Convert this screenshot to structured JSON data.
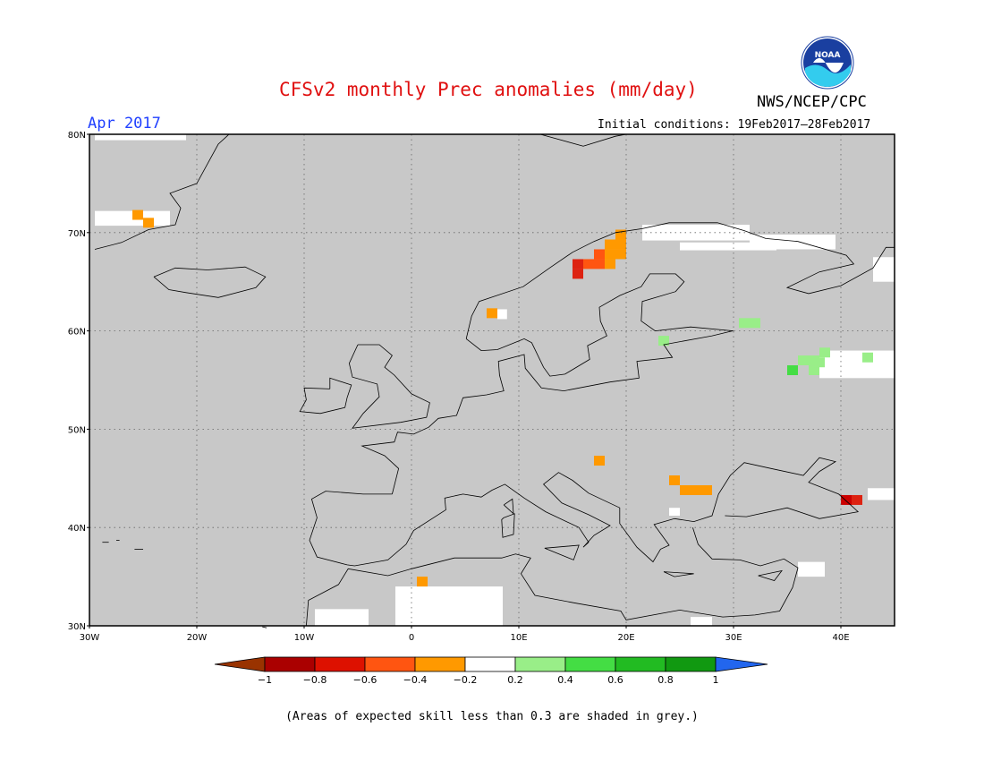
{
  "title": "CFSv2 monthly Prec anomalies (mm/day)",
  "month": "Apr 2017",
  "initial_conditions": "Initial conditions: 19Feb2017–28Feb2017",
  "agency": "NWS/NCEP/CPC",
  "logo_text": "NOAA",
  "footnote": "(Areas of expected skill less than 0.3 are shaded in grey.)",
  "colors": {
    "skill_grey": "#c8c8c8",
    "neutral": "#ffffff",
    "coast": "#000000"
  },
  "map": {
    "lon_range": [
      -30,
      45
    ],
    "lat_range": [
      30,
      80
    ],
    "lat_labels": [
      "80N",
      "70N",
      "60N",
      "50N",
      "40N",
      "30N"
    ],
    "lon_labels": [
      "30W",
      "20W",
      "10W",
      "0",
      "10E",
      "20E",
      "30E",
      "40E"
    ],
    "cells": [
      {
        "lon": -25.5,
        "lat": 71.8,
        "color": "#ff9900"
      },
      {
        "lon": -24.5,
        "lat": 71.0,
        "color": "#ff9900"
      },
      {
        "lon": 7.5,
        "lat": 61.8,
        "color": "#ff9900"
      },
      {
        "lon": 15.5,
        "lat": 66.8,
        "color": "#dd2211"
      },
      {
        "lon": 15.5,
        "lat": 65.8,
        "color": "#dd2211"
      },
      {
        "lon": 16.5,
        "lat": 66.8,
        "color": "#ff5511"
      },
      {
        "lon": 17.5,
        "lat": 67.8,
        "color": "#ff5511"
      },
      {
        "lon": 17.5,
        "lat": 66.8,
        "color": "#ff5511"
      },
      {
        "lon": 18.5,
        "lat": 68.8,
        "color": "#ff9900"
      },
      {
        "lon": 18.5,
        "lat": 67.8,
        "color": "#ff9900"
      },
      {
        "lon": 19.5,
        "lat": 68.8,
        "color": "#ff9900"
      },
      {
        "lon": 19.5,
        "lat": 67.8,
        "color": "#ff9900"
      },
      {
        "lon": 19.5,
        "lat": 69.8,
        "color": "#ff9900"
      },
      {
        "lon": 18.5,
        "lat": 66.8,
        "color": "#ff9900"
      },
      {
        "lon": 17.5,
        "lat": 46.8,
        "color": "#ff9900"
      },
      {
        "lon": 24.5,
        "lat": 44.8,
        "color": "#ff9900"
      },
      {
        "lon": 25.5,
        "lat": 43.8,
        "color": "#ff9900"
      },
      {
        "lon": 26.5,
        "lat": 43.8,
        "color": "#ff9900"
      },
      {
        "lon": 27.5,
        "lat": 43.8,
        "color": "#ff9900"
      },
      {
        "lon": 1.0,
        "lat": 34.5,
        "color": "#ff9900"
      },
      {
        "lon": 41.5,
        "lat": 42.8,
        "color": "#dd2211"
      },
      {
        "lon": 40.5,
        "lat": 42.8,
        "color": "#cc0000"
      },
      {
        "lon": 31.0,
        "lat": 60.8,
        "color": "#99ee88"
      },
      {
        "lon": 32.0,
        "lat": 60.8,
        "color": "#99ee88"
      },
      {
        "lon": 23.5,
        "lat": 59.0,
        "color": "#99ee88"
      },
      {
        "lon": 35.5,
        "lat": 56.0,
        "color": "#44dd44"
      },
      {
        "lon": 36.5,
        "lat": 57.0,
        "color": "#99ee88"
      },
      {
        "lon": 37.5,
        "lat": 57.0,
        "color": "#99ee88"
      },
      {
        "lon": 37.5,
        "lat": 56.0,
        "color": "#99ee88"
      },
      {
        "lon": 38.5,
        "lat": 57.8,
        "color": "#99ee88"
      },
      {
        "lon": 38.0,
        "lat": 56.8,
        "color": "#99ee88"
      },
      {
        "lon": 42.5,
        "lat": 57.3,
        "color": "#99ee88"
      }
    ],
    "white_areas": [
      {
        "lon": -29.5,
        "lat": 80.0,
        "w": 8.5,
        "h": 0.6
      },
      {
        "lon": -29.5,
        "lat": 72.2,
        "w": 7.0,
        "h": 1.5
      },
      {
        "lon": 21.5,
        "lat": 70.8,
        "w": 10.0,
        "h": 1.6
      },
      {
        "lon": 31.5,
        "lat": 69.8,
        "w": 8.0,
        "h": 1.5
      },
      {
        "lon": 25.0,
        "lat": 69.0,
        "w": 9.0,
        "h": 0.8
      },
      {
        "lon": 8.0,
        "lat": 62.2,
        "w": 0.9,
        "h": 1.0
      },
      {
        "lon": 38.0,
        "lat": 58.0,
        "w": 7.0,
        "h": 2.8
      },
      {
        "lon": 43.0,
        "lat": 67.5,
        "w": 2.0,
        "h": 2.5
      },
      {
        "lon": 42.5,
        "lat": 44.0,
        "w": 2.5,
        "h": 1.2
      },
      {
        "lon": -1.5,
        "lat": 34.0,
        "w": 10.0,
        "h": 4.0
      },
      {
        "lon": -9.0,
        "lat": 31.7,
        "w": 5.0,
        "h": 1.7
      },
      {
        "lon": 24.0,
        "lat": 42.0,
        "w": 1.0,
        "h": 0.8
      },
      {
        "lon": 26.0,
        "lat": 30.9,
        "w": 2.0,
        "h": 0.9
      },
      {
        "lon": 36.0,
        "lat": 36.5,
        "w": 2.5,
        "h": 1.5
      }
    ]
  },
  "colorbar": {
    "tick_labels": [
      "−1",
      "−0.8",
      "−0.6",
      "−0.4",
      "−0.2",
      "0.2",
      "0.4",
      "0.6",
      "0.8",
      "1"
    ],
    "bins": [
      {
        "color": "#993300"
      },
      {
        "color": "#aa0000"
      },
      {
        "color": "#dd1100"
      },
      {
        "color": "#ff5511"
      },
      {
        "color": "#ff9900"
      },
      {
        "color": "#ffffff"
      },
      {
        "color": "#99ee88"
      },
      {
        "color": "#44dd44"
      },
      {
        "color": "#22bb22"
      },
      {
        "color": "#119911"
      },
      {
        "color": "#2266ee"
      }
    ]
  }
}
